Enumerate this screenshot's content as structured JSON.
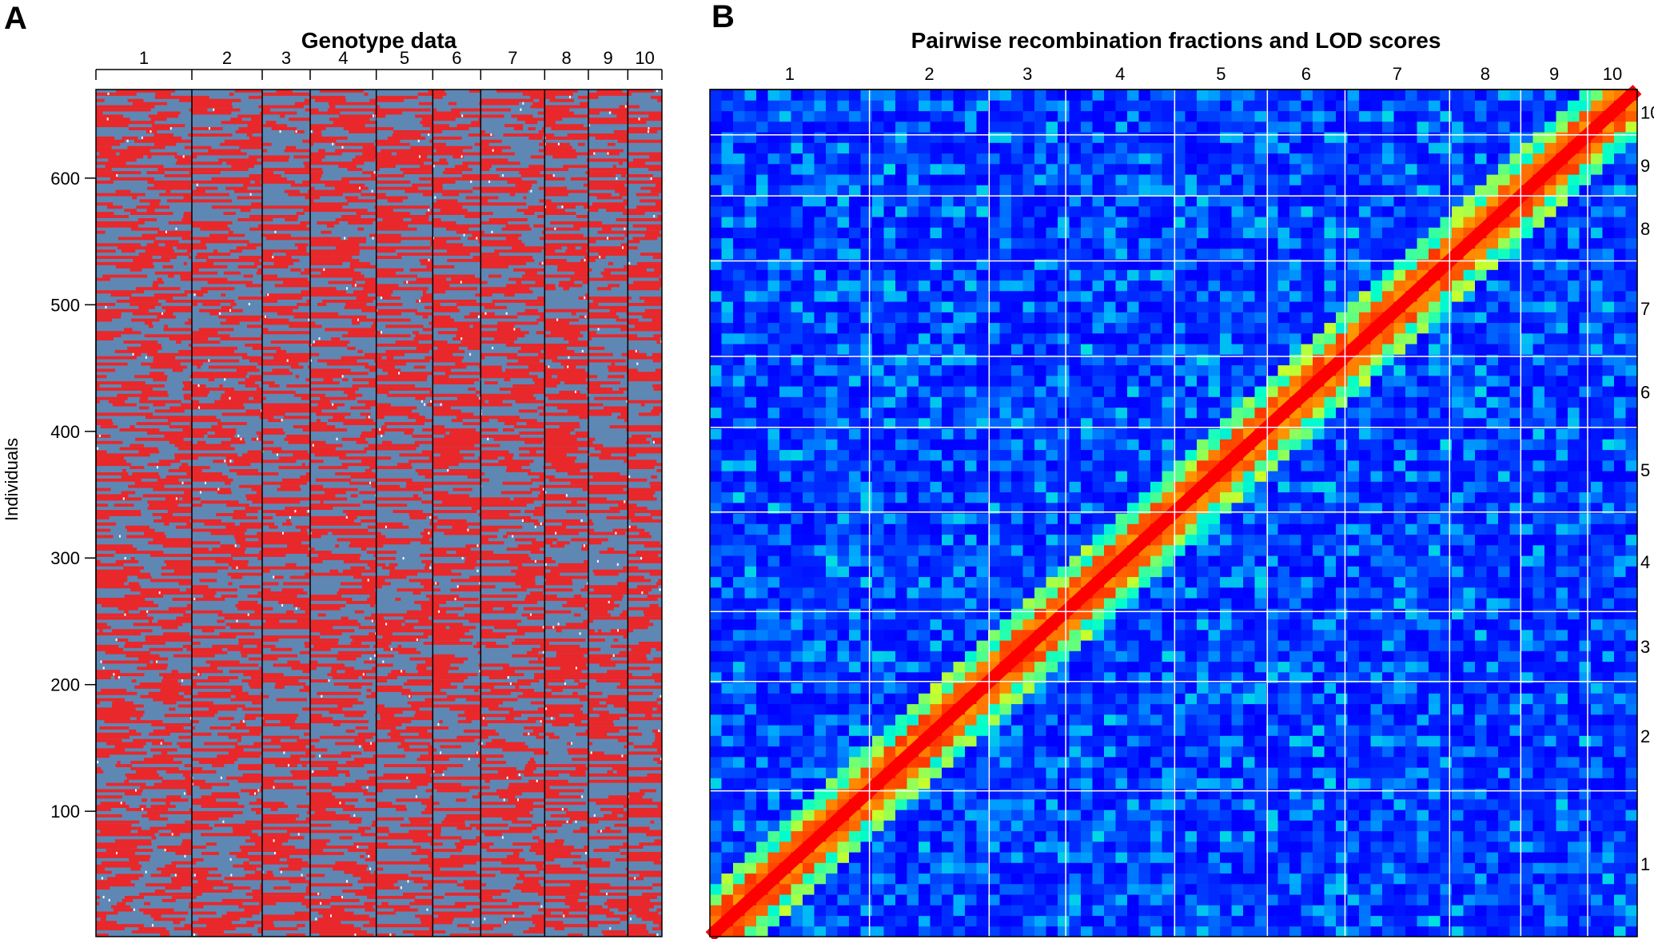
{
  "chart_data": [
    {
      "panel": "A",
      "type": "heatmap",
      "title": "Genotype data",
      "xlabel": "",
      "ylabel": "Individuals",
      "chromosomes": [
        "1",
        "2",
        "3",
        "4",
        "5",
        "6",
        "7",
        "8",
        "9",
        "10"
      ],
      "chromosome_relative_widths": [
        90,
        66,
        45,
        62,
        53,
        45,
        60,
        41,
        37,
        32
      ],
      "ylim": [
        1,
        670
      ],
      "yticks": [
        "100",
        "200",
        "300",
        "400",
        "500",
        "600"
      ],
      "genotype_colors": {
        "AA": "#e8282b",
        "AB": "#5f87b4",
        "missing": "#ffffff"
      }
    },
    {
      "panel": "B",
      "type": "heatmap",
      "title": "Pairwise recombination fractions and LOD scores",
      "xlabel": "",
      "ylabel": "",
      "chromosomes": [
        "1",
        "2",
        "3",
        "4",
        "5",
        "6",
        "7",
        "8",
        "9",
        "10"
      ],
      "chromosome_relative_widths": [
        148,
        111,
        71,
        101,
        86,
        72,
        97,
        66,
        62,
        46
      ],
      "colorscale": [
        "#0000ff",
        "#00aaff",
        "#00ffcc",
        "#ffff00",
        "#ff0000"
      ],
      "grid_line_color": "#ffffff"
    }
  ]
}
